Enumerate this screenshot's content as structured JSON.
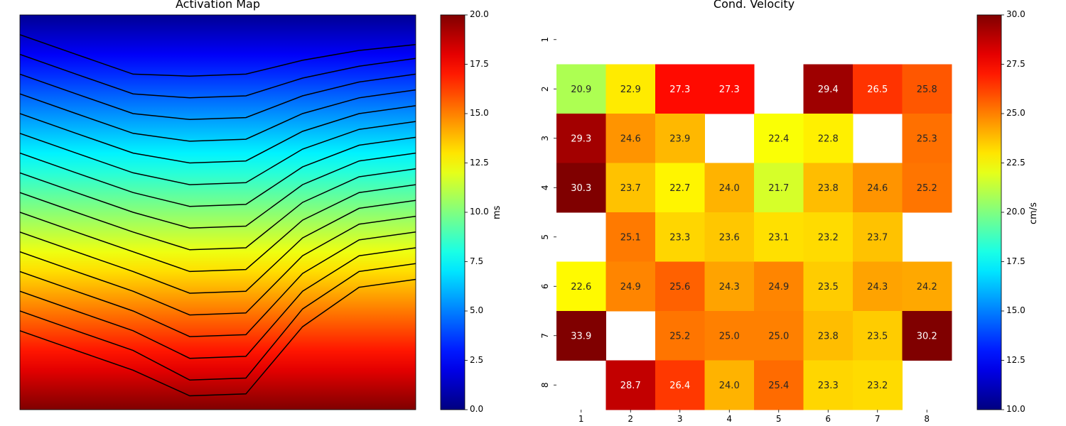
{
  "activation": {
    "title": "Activation Map",
    "colorbar": {
      "label": "ms",
      "range": [
        0,
        20
      ],
      "ticks": [
        "0.0",
        "2.5",
        "5.0",
        "7.5",
        "10.0",
        "12.5",
        "15.0",
        "17.5",
        "20.0"
      ],
      "colormap": "jet"
    },
    "contours": {
      "color": "#000000",
      "x_nodes": [
        0,
        0.142,
        0.286,
        0.429,
        0.571,
        0.714,
        0.857,
        1.0
      ],
      "levels": [
        [
          1.0,
          2.0,
          3.0,
          3.1,
          3.0,
          2.3,
          1.8,
          1.5
        ],
        [
          2.0,
          3.0,
          4.0,
          4.2,
          4.1,
          3.2,
          2.6,
          2.2
        ],
        [
          3.0,
          4.0,
          5.0,
          5.3,
          5.2,
          4.1,
          3.4,
          3.0
        ],
        [
          4.0,
          5.0,
          6.0,
          6.4,
          6.3,
          5.0,
          4.2,
          3.8
        ],
        [
          5.0,
          6.0,
          7.0,
          7.5,
          7.4,
          5.9,
          5.0,
          4.6
        ],
        [
          6.0,
          7.0,
          8.0,
          8.6,
          8.5,
          6.8,
          5.8,
          5.4
        ],
        [
          7.0,
          8.0,
          9.0,
          9.7,
          9.6,
          7.7,
          6.6,
          6.2
        ],
        [
          8.0,
          9.0,
          10.0,
          10.8,
          10.7,
          8.6,
          7.4,
          7.0
        ],
        [
          9.0,
          10.0,
          11.0,
          11.9,
          11.8,
          9.5,
          8.2,
          7.8
        ],
        [
          10.0,
          11.0,
          12.0,
          13.0,
          12.9,
          10.4,
          9.0,
          8.6
        ],
        [
          11.0,
          12.0,
          13.0,
          14.1,
          14.0,
          11.3,
          9.8,
          9.4
        ],
        [
          12.0,
          13.0,
          14.0,
          15.2,
          15.1,
          12.2,
          10.6,
          10.2
        ],
        [
          13.0,
          14.0,
          15.0,
          16.3,
          16.2,
          13.1,
          11.4,
          11.0
        ],
        [
          14.0,
          15.0,
          16.0,
          17.4,
          17.3,
          14.0,
          12.2,
          11.8
        ],
        [
          15.0,
          16.0,
          17.0,
          18.5,
          18.4,
          14.9,
          13.0,
          12.6
        ],
        [
          16.0,
          17.0,
          18.0,
          19.3,
          19.2,
          15.8,
          13.8,
          13.4
        ]
      ]
    }
  },
  "chart_data": {
    "type": "heatmap",
    "title": "Cond. Velocity",
    "x": [
      "1",
      "2",
      "3",
      "4",
      "5",
      "6",
      "7",
      "8"
    ],
    "y": [
      "1",
      "2",
      "3",
      "4",
      "5",
      "6",
      "7",
      "8"
    ],
    "colorbar": {
      "label": "cm/s",
      "range": [
        10,
        30
      ],
      "ticks": [
        "10.0",
        "12.5",
        "15.0",
        "17.5",
        "20.0",
        "22.5",
        "25.0",
        "27.5",
        "30.0"
      ],
      "colormap": "jet"
    },
    "values": [
      [
        null,
        null,
        null,
        null,
        null,
        null,
        null,
        null
      ],
      [
        20.9,
        22.9,
        27.3,
        27.3,
        null,
        29.4,
        26.5,
        25.8
      ],
      [
        29.3,
        24.6,
        23.9,
        null,
        22.4,
        22.8,
        null,
        25.3
      ],
      [
        30.3,
        23.7,
        22.7,
        24.0,
        21.7,
        23.8,
        24.6,
        25.2
      ],
      [
        null,
        25.1,
        23.3,
        23.6,
        23.1,
        23.2,
        23.7,
        null
      ],
      [
        22.6,
        24.9,
        25.6,
        24.3,
        24.9,
        23.5,
        24.3,
        24.2
      ],
      [
        33.9,
        null,
        25.2,
        25.0,
        25.0,
        23.8,
        23.5,
        30.2
      ],
      [
        null,
        28.7,
        26.4,
        24.0,
        25.4,
        23.3,
        23.2,
        null
      ]
    ]
  }
}
